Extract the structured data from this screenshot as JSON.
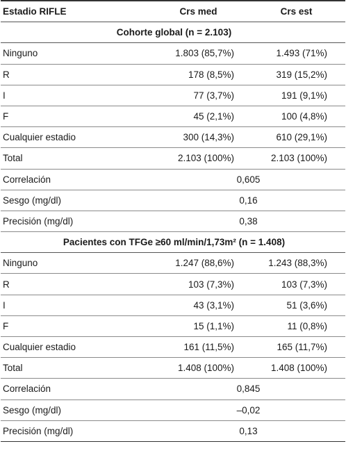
{
  "header": {
    "col1": "Estadio RIFLE",
    "col2": "Crs med",
    "col3": "Crs est"
  },
  "sections": [
    {
      "title": "Cohorte global (n = 2.103)",
      "rows": [
        {
          "label": "Ninguno",
          "med": "1.803 (85,7%)",
          "est": "1.493 (71%)"
        },
        {
          "label": "R",
          "med": "178 (8,5%)",
          "est": "319 (15,2%)"
        },
        {
          "label": "I",
          "med": "77 (3,7%)",
          "est": "191 (9,1%)"
        },
        {
          "label": "F",
          "med": "45 (2,1%)",
          "est": "100 (4,8%)"
        },
        {
          "label": "Cualquier estadio",
          "med": "300 (14,3%)",
          "est": "610 (29,1%)"
        },
        {
          "label": "Total",
          "med": "2.103 (100%)",
          "est": "2.103 (100%)"
        }
      ],
      "stats": [
        {
          "label": "Correlación",
          "value": "0,605"
        },
        {
          "label": "Sesgo (mg/dl)",
          "value": "0,16"
        },
        {
          "label": "Precisión (mg/dl)",
          "value": "0,38"
        }
      ]
    },
    {
      "title": "Pacientes con TFGe ≥60 ml/min/1,73m² (n = 1.408)",
      "rows": [
        {
          "label": "Ninguno",
          "med": "1.247 (88,6%)",
          "est": "1.243 (88,3%)"
        },
        {
          "label": "R",
          "med": "103 (7,3%)",
          "est": "103 (7,3%)"
        },
        {
          "label": "I",
          "med": "43 (3,1%)",
          "est": "51 (3,6%)"
        },
        {
          "label": "F",
          "med": "15 (1,1%)",
          "est": "11 (0,8%)"
        },
        {
          "label": "Cualquier estadio",
          "med": "161 (11,5%)",
          "est": "165 (11,7%)"
        },
        {
          "label": "Total",
          "med": "1.408 (100%)",
          "est": "1.408 (100%)"
        }
      ],
      "stats": [
        {
          "label": "Correlación",
          "value": "0,845"
        },
        {
          "label": "Sesgo (mg/dl)",
          "value": "–0,02"
        },
        {
          "label": "Precisión (mg/dl)",
          "value": "0,13"
        }
      ]
    }
  ]
}
